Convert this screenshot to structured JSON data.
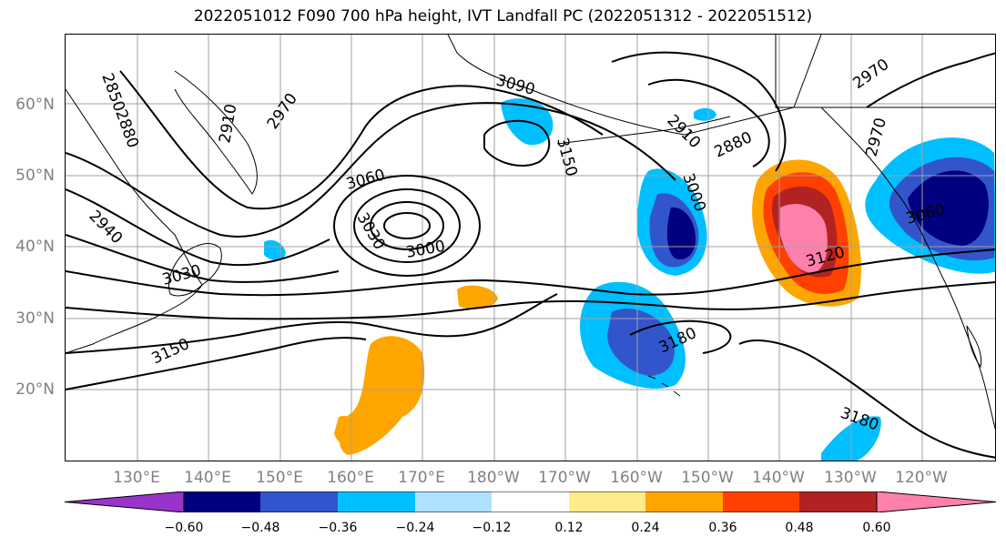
{
  "title": "2022051012 F090 700 hPa height, IVT Landfall PC (2022051312 - 2022051512)",
  "lat_labels": [
    "60°N",
    "50°N",
    "40°N",
    "30°N",
    "20°N"
  ],
  "lon_labels": [
    "130°E",
    "140°E",
    "150°E",
    "160°E",
    "170°E",
    "180°W",
    "170°W",
    "160°W",
    "150°W",
    "140°W",
    "130°W",
    "120°W"
  ],
  "colorbar": {
    "ticks": [
      "−0.60",
      "−0.48",
      "−0.36",
      "−0.24",
      "−0.12",
      "0.12",
      "0.24",
      "0.36",
      "0.48",
      "0.60"
    ],
    "colors": [
      "#9933cc",
      "#000080",
      "#3355cc",
      "#00bfff",
      "#b0e0ff",
      "#ffffff",
      "#ffeb8a",
      "#ffa500",
      "#ff4000",
      "#b22222",
      "#ff80aa"
    ]
  },
  "contour_labels": [
    "2850",
    "2880",
    "2910",
    "2970",
    "2940",
    "3030",
    "3060",
    "3030",
    "3000",
    "3090",
    "3150",
    "2910",
    "3000",
    "2880",
    "3120",
    "2970",
    "2970",
    "3060",
    "3180",
    "3150",
    "3180"
  ],
  "colors": {
    "land_line": "#000000",
    "grid": "#a0a0a0",
    "contour": "#000000"
  }
}
